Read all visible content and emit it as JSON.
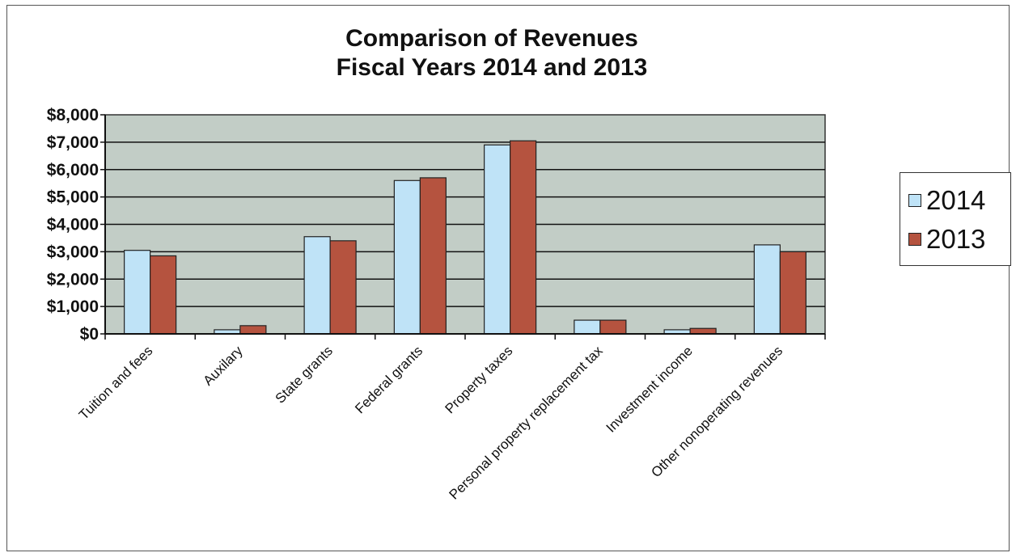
{
  "chart_data": {
    "type": "bar",
    "title_lines": [
      "Comparison of Revenues",
      "Fiscal Years 2014 and 2013"
    ],
    "categories": [
      "Tuition and fees",
      "Auxilary",
      "State grants",
      "Federal grants",
      "Property taxes",
      "Personal property replacement tax",
      "Investment income",
      "Other nonoperating revenues"
    ],
    "series": [
      {
        "name": "2014",
        "color": "#bfe3f7",
        "values": [
          3050,
          150,
          3550,
          5600,
          6900,
          500,
          150,
          3250
        ]
      },
      {
        "name": "2013",
        "color": "#b5533f",
        "values": [
          2850,
          300,
          3400,
          5700,
          7050,
          500,
          200,
          3000
        ]
      }
    ],
    "ylim": [
      0,
      8000
    ],
    "yticks": [
      "$0",
      "$1,000",
      "$2,000",
      "$3,000",
      "$4,000",
      "$5,000",
      "$6,000",
      "$7,000",
      "$8,000"
    ],
    "xlabel": "",
    "ylabel": "",
    "grid": true,
    "plot_background": "#c2cdc6",
    "legend_position": "right"
  }
}
